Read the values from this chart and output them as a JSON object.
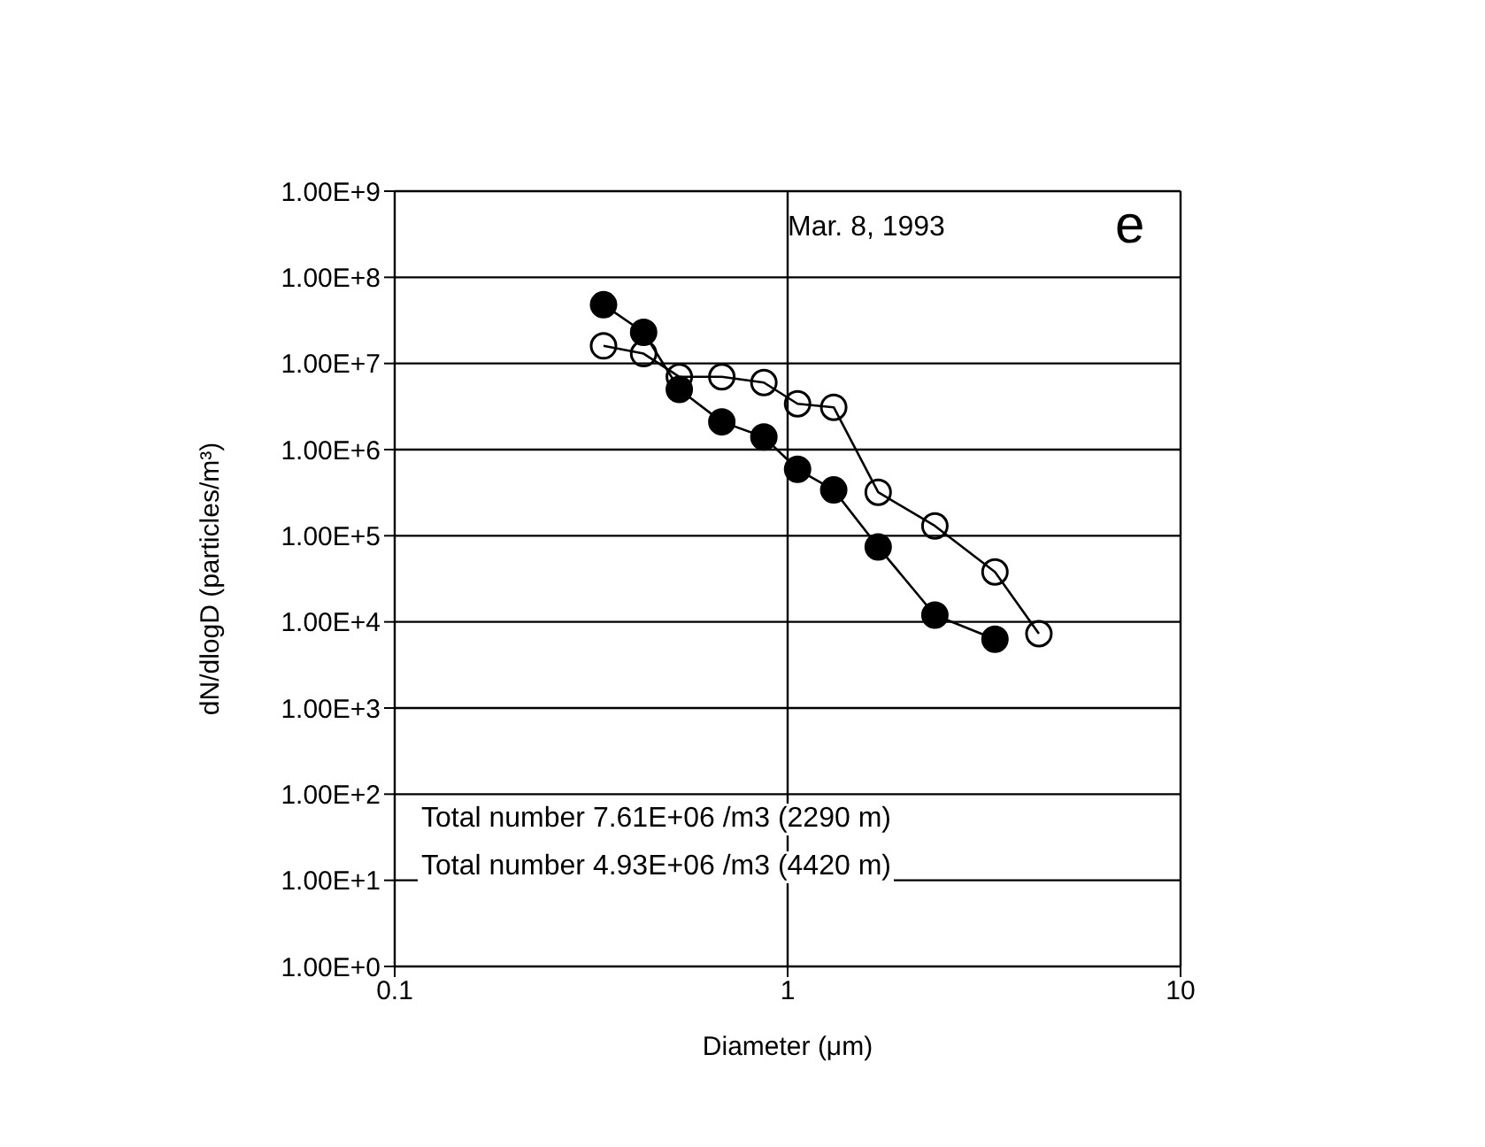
{
  "chart_data": {
    "type": "line",
    "xlabel": "Diameter (μm)",
    "ylabel": "dN/dlogD (particles/m³)",
    "log": "xy",
    "grid": true,
    "marker": "circle",
    "line_style": "solid",
    "legend": false,
    "xlim": [
      0.1,
      10
    ],
    "xticks": [
      0.1,
      1,
      10
    ],
    "ylim": [
      1,
      1000000000
    ],
    "yticks": [
      {
        "value": 1,
        "label": "1.00E+0"
      },
      {
        "value": 10,
        "label": "1.00E+1"
      },
      {
        "value": 100,
        "label": "1.00E+2"
      },
      {
        "value": 1000,
        "label": "1.00E+3"
      },
      {
        "value": 10000,
        "label": "1.00E+4"
      },
      {
        "value": 100000,
        "label": "1.00E+5"
      },
      {
        "value": 1000000,
        "label": "1.00E+6"
      },
      {
        "value": 10000000,
        "label": "1.00E+7"
      },
      {
        "value": 100000000,
        "label": "1.00E+8"
      },
      {
        "value": 1000000000,
        "label": "1.00E+9"
      }
    ],
    "series": [
      {
        "color": "#000000",
        "x": [
          0.34,
          0.43,
          0.53,
          0.68,
          0.87,
          1.06,
          1.31,
          1.7,
          2.37,
          3.37
        ],
        "values": [
          48000000,
          23000000,
          5000000,
          2100000,
          1400000,
          590000,
          340000,
          74000,
          12000,
          6300
        ]
      },
      {
        "color": "#000000",
        "marker": "circle_open",
        "x": [
          0.34,
          0.43,
          0.53,
          0.68,
          0.87,
          1.06,
          1.31,
          1.7,
          2.37,
          3.37,
          4.36
        ],
        "values": [
          16000000,
          13000000,
          7000000,
          7000000,
          6000000,
          3400000,
          3100000,
          320000,
          130000,
          38000,
          7300
        ]
      }
    ],
    "annotations": [
      "Mar. 8, 1993",
      "e",
      "Total number 7.61E+06 /m3 (2290 m)",
      "Total number 4.93E+06 /m3 (4420 m)"
    ]
  }
}
